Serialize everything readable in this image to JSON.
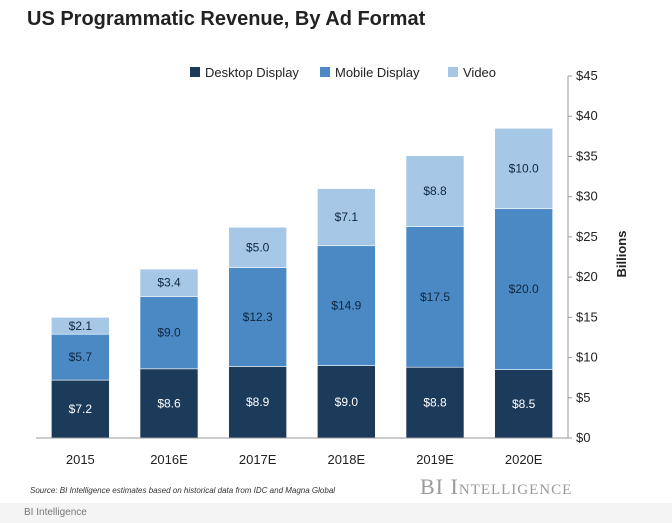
{
  "chart_data": {
    "type": "bar",
    "stacked": true,
    "title": "US Programmatic Revenue, By Ad Format",
    "ylabel": "Billions",
    "categories": [
      "2015",
      "2016E",
      "2017E",
      "2018E",
      "2019E",
      "2020E"
    ],
    "series": [
      {
        "name": "Desktop Display",
        "values": [
          7.2,
          8.6,
          8.9,
          9.0,
          8.8,
          8.5
        ],
        "labels": [
          "$7.2",
          "$8.6",
          "$8.9",
          "$9.0",
          "$8.8",
          "$8.5"
        ],
        "color": "#1c3a5a"
      },
      {
        "name": "Mobile Display",
        "values": [
          5.7,
          9.0,
          12.3,
          14.9,
          17.5,
          20.0
        ],
        "labels": [
          "$5.7",
          "$9.0",
          "$12.3",
          "$14.9",
          "$17.5",
          "$20.0"
        ],
        "color": "#4a89c3"
      },
      {
        "name": "Video",
        "values": [
          2.1,
          3.4,
          5.0,
          7.1,
          8.8,
          10.0
        ],
        "labels": [
          "$2.1",
          "$3.4",
          "$5.0",
          "$7.1",
          "$8.8",
          "$10.0"
        ],
        "color": "#a6c8e6"
      }
    ],
    "ylim": [
      0,
      45
    ],
    "yticks": [
      0,
      5,
      10,
      15,
      20,
      25,
      30,
      35,
      40,
      45
    ],
    "ytick_labels": [
      "$0",
      "$5",
      "$10",
      "$15",
      "$20",
      "$25",
      "$30",
      "$35",
      "$40",
      "$45"
    ],
    "y_axis_side": "right",
    "legend_position": "top",
    "grid": false
  },
  "source": "Source: BI Intelligence estimates based on historical data from IDC and Magna Global",
  "brand": "BI Intelligence",
  "footer": "BI Intelligence"
}
